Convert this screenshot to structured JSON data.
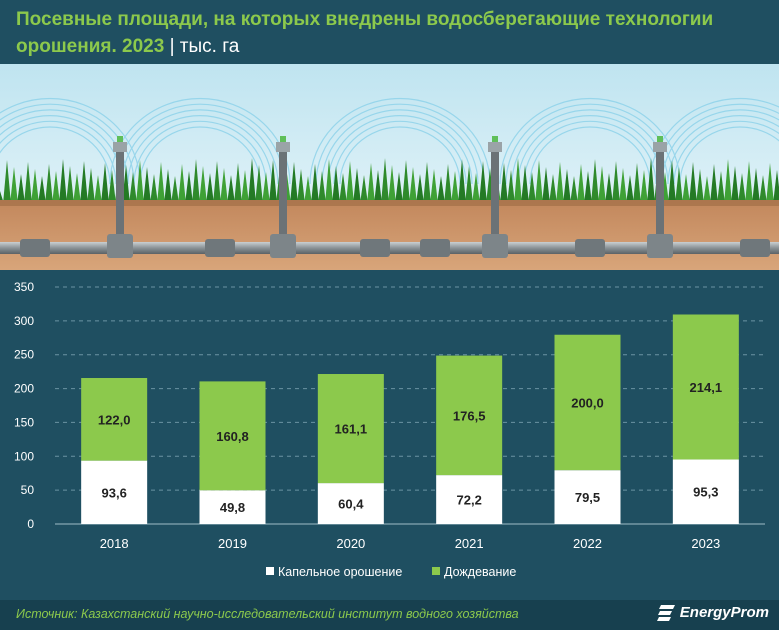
{
  "title": {
    "main": "Посевные площади, на которых внедрены водосберегающие технологии орошения. 2023",
    "separator": " | ",
    "unit": "тыс. га"
  },
  "colors": {
    "background": "#1f4f61",
    "drip": "#ffffff",
    "sprinkler": "#8cc94c",
    "accent": "#8cc94c"
  },
  "chart_data": {
    "type": "bar",
    "stacked": true,
    "categories": [
      "2018",
      "2019",
      "2020",
      "2021",
      "2022",
      "2023"
    ],
    "series": [
      {
        "name": "Капельное орошение",
        "values": [
          93.6,
          49.8,
          60.4,
          72.2,
          79.5,
          95.3
        ],
        "labels": [
          "93,6",
          "49,8",
          "60,4",
          "72,2",
          "79,5",
          "95,3"
        ],
        "color": "#ffffff"
      },
      {
        "name": "Дождевание",
        "values": [
          122.0,
          160.8,
          161.1,
          176.5,
          200.0,
          214.1
        ],
        "labels": [
          "122,0",
          "160,8",
          "161,1",
          "176,5",
          "200,0",
          "214,1"
        ],
        "color": "#8cc94c"
      }
    ],
    "yticks": [
      "0",
      "50",
      "100",
      "150",
      "200",
      "250",
      "300",
      "350"
    ],
    "ylim": [
      0,
      350
    ],
    "grid": "dashed horizontal",
    "legend": "bottom-center"
  },
  "footer": {
    "source": "Источник: Казахстанский научно-исследовательский институт водного хозяйства",
    "brand": "EnergyProm"
  }
}
